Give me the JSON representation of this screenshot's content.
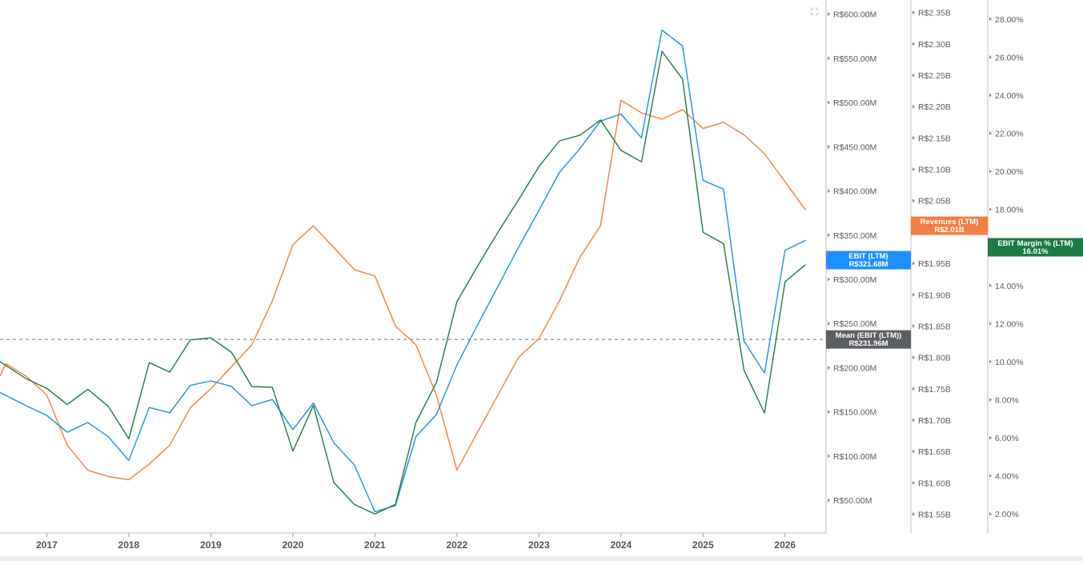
{
  "chart_data": {
    "type": "line",
    "title": "",
    "x_axis": {
      "ticks": [
        "2017",
        "2018",
        "2019",
        "2020",
        "2021",
        "2022",
        "2023",
        "2024",
        "2025",
        "2026"
      ],
      "range": [
        2016.43,
        2026.5
      ]
    },
    "axes": {
      "ebit": {
        "range": [
          13.0,
          616.0
        ],
        "ticks": [
          {
            "value": 50,
            "label": "R$50.00M"
          },
          {
            "value": 100,
            "label": "R$100.00M"
          },
          {
            "value": 150,
            "label": "R$150.00M"
          },
          {
            "value": 200,
            "label": "R$200.00M"
          },
          {
            "value": 250,
            "label": "R$250.00M"
          },
          {
            "value": 300,
            "label": "R$300.00M"
          },
          {
            "value": 350,
            "label": "R$350.00M"
          },
          {
            "value": 400,
            "label": "R$400.00M"
          },
          {
            "value": 450,
            "label": "R$450.00M"
          },
          {
            "value": 500,
            "label": "R$500.00M"
          },
          {
            "value": 550,
            "label": "R$550.00M"
          },
          {
            "value": 600,
            "label": "R$600.00M"
          }
        ]
      },
      "revenue": {
        "range": [
          1.52,
          2.37
        ],
        "ticks": [
          {
            "value": 1.55,
            "label": "R$1.55B"
          },
          {
            "value": 1.6,
            "label": "R$1.60B"
          },
          {
            "value": 1.65,
            "label": "R$1.65B"
          },
          {
            "value": 1.7,
            "label": "R$1.70B"
          },
          {
            "value": 1.75,
            "label": "R$1.75B"
          },
          {
            "value": 1.8,
            "label": "R$1.80B"
          },
          {
            "value": 1.85,
            "label": "R$1.85B"
          },
          {
            "value": 1.9,
            "label": "R$1.90B"
          },
          {
            "value": 1.95,
            "label": "R$1.95B"
          },
          {
            "value": 2.05,
            "label": "R$2.05B"
          },
          {
            "value": 2.1,
            "label": "R$2.10B"
          },
          {
            "value": 2.15,
            "label": "R$2.15B"
          },
          {
            "value": 2.2,
            "label": "R$2.20B"
          },
          {
            "value": 2.25,
            "label": "R$2.25B"
          },
          {
            "value": 2.3,
            "label": "R$2.30B"
          },
          {
            "value": 2.35,
            "label": "R$2.35B"
          }
        ]
      },
      "margin": {
        "range": [
          1.0,
          29.0
        ],
        "ticks": [
          {
            "value": 2,
            "label": "2.00%"
          },
          {
            "value": 4,
            "label": "4.00%"
          },
          {
            "value": 6,
            "label": "6.00%"
          },
          {
            "value": 8,
            "label": "8.00%"
          },
          {
            "value": 10,
            "label": "10.00%"
          },
          {
            "value": 12,
            "label": "12.00%"
          },
          {
            "value": 14,
            "label": "14.00%"
          },
          {
            "value": 18,
            "label": "18.00%"
          },
          {
            "value": 20,
            "label": "20.00%"
          },
          {
            "value": 22,
            "label": "22.00%"
          },
          {
            "value": 24,
            "label": "24.00%"
          },
          {
            "value": 26,
            "label": "26.00%"
          },
          {
            "value": 28,
            "label": "28.00%"
          }
        ]
      }
    },
    "series": [
      {
        "key": "revenue",
        "axis": "revenue",
        "color": "#f07f43",
        "x": [
          2016.43,
          2016.5,
          2016.75,
          2017.0,
          2017.25,
          2017.5,
          2017.75,
          2018.0,
          2018.25,
          2018.5,
          2018.75,
          2019.0,
          2019.25,
          2019.5,
          2019.75,
          2020.0,
          2020.25,
          2020.5,
          2020.75,
          2021.0,
          2021.25,
          2021.5,
          2021.75,
          2022.0,
          2022.25,
          2022.5,
          2022.75,
          2023.0,
          2023.25,
          2023.5,
          2023.75,
          2024.0,
          2024.25,
          2024.5,
          2024.75,
          2025.0,
          2025.25,
          2025.5,
          2025.75,
          2026.0,
          2026.25
        ],
        "y": [
          1.77,
          1.79,
          1.77,
          1.74,
          1.66,
          1.62,
          1.61,
          1.605,
          1.63,
          1.66,
          1.72,
          1.75,
          1.785,
          1.82,
          1.89,
          1.98,
          2.01,
          1.975,
          1.94,
          1.93,
          1.85,
          1.82,
          1.74,
          1.62,
          1.68,
          1.74,
          1.8,
          1.83,
          1.89,
          1.96,
          2.01,
          2.21,
          2.19,
          2.18,
          2.195,
          2.165,
          2.175,
          2.155,
          2.125,
          2.08,
          2.035
        ]
      },
      {
        "key": "ebit",
        "axis": "ebit",
        "color": "#1d92d6",
        "x": [
          2016.43,
          2016.75,
          2017.0,
          2017.25,
          2017.5,
          2017.75,
          2018.0,
          2018.25,
          2018.5,
          2018.75,
          2019.0,
          2019.25,
          2019.5,
          2019.75,
          2020.0,
          2020.25,
          2020.5,
          2020.75,
          2021.0,
          2021.25,
          2021.5,
          2021.75,
          2022.0,
          2022.25,
          2022.5,
          2022.75,
          2023.0,
          2023.25,
          2023.5,
          2023.75,
          2024.0,
          2024.25,
          2024.5,
          2024.75,
          2025.0,
          2025.25,
          2025.5,
          2025.75,
          2026.0,
          2026.25
        ],
        "y": [
          172,
          157,
          146,
          127,
          138,
          122,
          95,
          155,
          149,
          180,
          185,
          179,
          157,
          164,
          130,
          160,
          115,
          90,
          37,
          44,
          122,
          147,
          203,
          248,
          292,
          336,
          378,
          421,
          448,
          479,
          487,
          460,
          582,
          564,
          412,
          402,
          230,
          194,
          333,
          344
        ]
      },
      {
        "key": "margin",
        "axis": "margin",
        "color": "#1d7a45",
        "x": [
          2016.43,
          2016.75,
          2017.0,
          2017.25,
          2017.5,
          2017.75,
          2018.0,
          2018.25,
          2018.5,
          2018.75,
          2019.0,
          2019.25,
          2019.5,
          2019.75,
          2020.0,
          2020.25,
          2020.5,
          2020.75,
          2021.0,
          2021.25,
          2021.5,
          2021.75,
          2022.0,
          2022.25,
          2022.5,
          2022.75,
          2023.0,
          2023.25,
          2023.5,
          2023.75,
          2024.0,
          2024.25,
          2024.5,
          2024.75,
          2025.0,
          2025.25,
          2025.5,
          2025.75,
          2026.0,
          2026.25
        ],
        "y": [
          10.0,
          9.1,
          8.6,
          7.75,
          8.55,
          7.65,
          5.95,
          9.95,
          9.45,
          11.15,
          11.25,
          10.5,
          8.7,
          8.65,
          5.3,
          7.7,
          3.65,
          2.5,
          2.0,
          2.5,
          6.8,
          8.9,
          13.15,
          15.0,
          16.8,
          18.5,
          20.25,
          21.6,
          21.9,
          22.7,
          21.1,
          20.5,
          26.3,
          24.85,
          16.8,
          16.2,
          9.55,
          7.3,
          14.2,
          15.1
        ]
      }
    ],
    "mean_line": {
      "axis": "ebit",
      "value": 231.96,
      "style": "dashed"
    },
    "labels": [
      {
        "key": "ebit",
        "text": "EBIT (LTM)",
        "value": "R$321.68M",
        "axis": "ebit",
        "at": 321.68,
        "color": "#1e90ff"
      },
      {
        "key": "mean",
        "text": "Mean (EBIT (LTM))",
        "value": "R$231.96M",
        "axis": "ebit",
        "at": 231.96,
        "color": "#5b5e63"
      },
      {
        "key": "revenue",
        "text": "Revenues (LTM)",
        "value": "R$2.01B",
        "axis": "revenue",
        "at": 2.01,
        "color": "#f07f43"
      },
      {
        "key": "margin",
        "text": "EBIT Margin % (LTM)",
        "value": "16.01%",
        "axis": "margin",
        "at": 16.01,
        "color": "#1d7a45"
      }
    ]
  }
}
